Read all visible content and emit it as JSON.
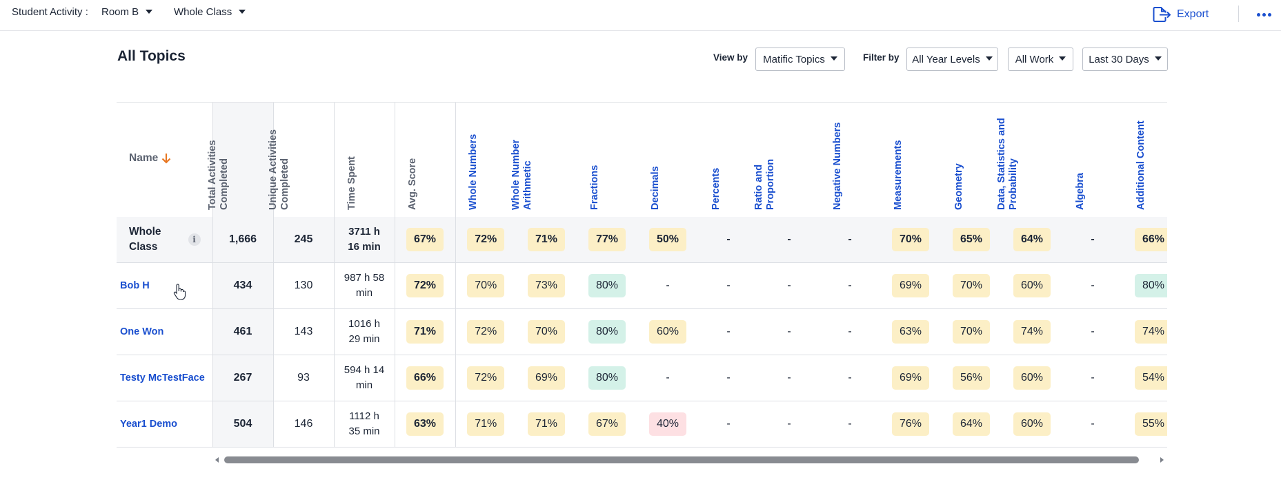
{
  "topbar": {
    "label": "Student Activity :",
    "room": "Room B",
    "group": "Whole Class",
    "export": "Export"
  },
  "title": "All Topics",
  "controls": {
    "view_by_label": "View by",
    "view_by": "Matific Topics",
    "filter_by_label": "Filter by",
    "year_levels": "All Year Levels",
    "work": "All Work",
    "period": "Last 30 Days"
  },
  "columns": {
    "name": "Name",
    "total": "Total Activities Completed",
    "unique": "Unique Activities Completed",
    "time": "Time Spent",
    "avg": "Avg. Score",
    "topics": [
      "Whole Numbers",
      "Whole Number Arithmetic",
      "Fractions",
      "Decimals",
      "Percents",
      "Ratio and Proportion",
      "Negative Numbers",
      "Measurements",
      "Geometry",
      "Data, Statistics and Probability",
      "Algebra",
      "Additional Content"
    ]
  },
  "colors": {
    "accent_blue": "#1a4fcf",
    "score_yellow": "#fcefc6",
    "score_green": "#d4f1e8",
    "score_red": "#fde0e3",
    "sort_arrow": "#e87722"
  },
  "rows": [
    {
      "name": "Whole Class",
      "total": "1,666",
      "unique": "245",
      "time": "3711 h 16 min",
      "avg": "67%",
      "topics": [
        "72%",
        "71%",
        "77%",
        "50%",
        "-",
        "-",
        "-",
        "70%",
        "65%",
        "64%",
        "-",
        "66%"
      ]
    },
    {
      "name": "Bob H",
      "total": "434",
      "unique": "130",
      "time": "987 h 58 min",
      "avg": "72%",
      "topics": [
        "70%",
        "73%",
        "80%",
        "-",
        "-",
        "-",
        "-",
        "69%",
        "70%",
        "60%",
        "-",
        "80%"
      ]
    },
    {
      "name": "One Won",
      "total": "461",
      "unique": "143",
      "time": "1016 h 29 min",
      "avg": "71%",
      "topics": [
        "72%",
        "70%",
        "80%",
        "60%",
        "-",
        "-",
        "-",
        "63%",
        "70%",
        "74%",
        "-",
        "74%"
      ]
    },
    {
      "name": "Testy McTestFace",
      "total": "267",
      "unique": "93",
      "time": "594 h 14 min",
      "avg": "66%",
      "topics": [
        "72%",
        "69%",
        "80%",
        "-",
        "-",
        "-",
        "-",
        "69%",
        "56%",
        "60%",
        "-",
        "54%"
      ]
    },
    {
      "name": "Year1 Demo",
      "total": "504",
      "unique": "146",
      "time": "1112 h 35 min",
      "avg": "63%",
      "topics": [
        "71%",
        "71%",
        "67%",
        "40%",
        "-",
        "-",
        "-",
        "76%",
        "64%",
        "60%",
        "-",
        "55%"
      ]
    }
  ]
}
